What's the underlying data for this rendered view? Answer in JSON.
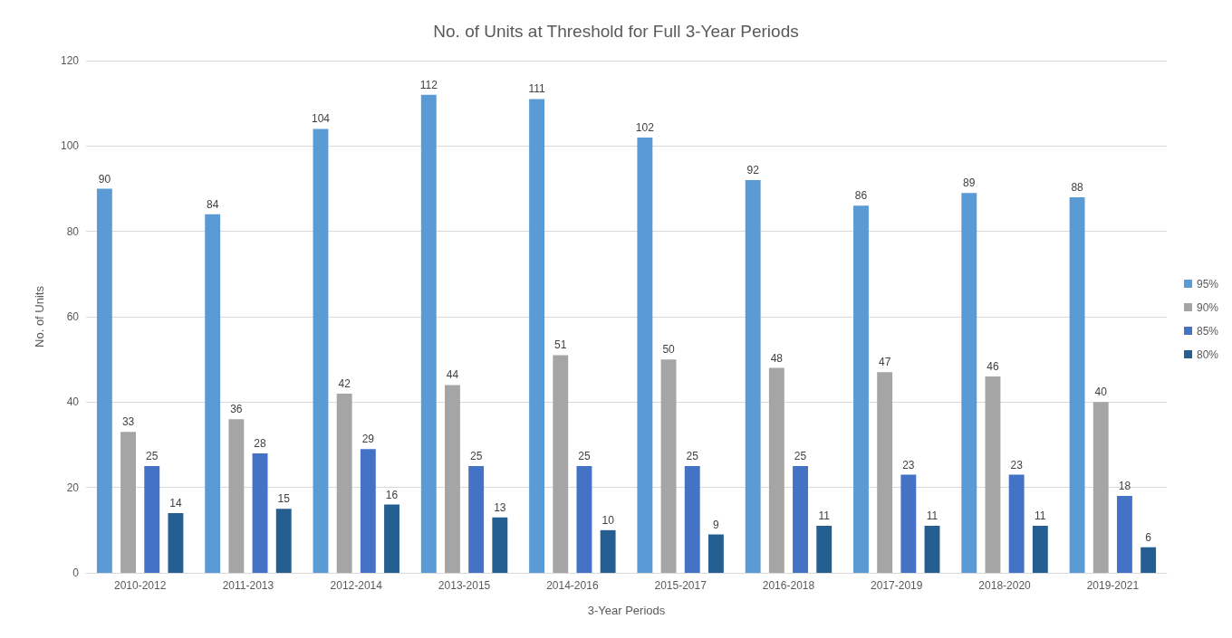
{
  "chart_data": {
    "type": "bar",
    "title": "No. of Units at Threshold for Full 3-Year Periods",
    "xlabel": "3-Year Periods",
    "ylabel": "No. of Units",
    "categories": [
      "2010-2012",
      "2011-2013",
      "2012-2014",
      "2013-2015",
      "2014-2016",
      "2015-2017",
      "2016-2018",
      "2017-2019",
      "2018-2020",
      "2019-2021"
    ],
    "series": [
      {
        "name": "95%",
        "color": "#5b9bd5",
        "values": [
          90,
          84,
          104,
          112,
          111,
          102,
          92,
          86,
          89,
          88
        ]
      },
      {
        "name": "90%",
        "color": "#a5a5a5",
        "values": [
          33,
          36,
          42,
          44,
          51,
          50,
          48,
          47,
          46,
          40
        ]
      },
      {
        "name": "85%",
        "color": "#4472c4",
        "values": [
          25,
          28,
          29,
          25,
          25,
          25,
          25,
          23,
          23,
          18
        ]
      },
      {
        "name": "80%",
        "color": "#255e91",
        "values": [
          14,
          15,
          16,
          13,
          10,
          9,
          11,
          11,
          11,
          6
        ]
      }
    ],
    "ylim": [
      0,
      120
    ],
    "yticks": [
      0,
      20,
      40,
      60,
      80,
      100,
      120
    ],
    "grid": "y",
    "legend": "right",
    "data_labels": true
  }
}
